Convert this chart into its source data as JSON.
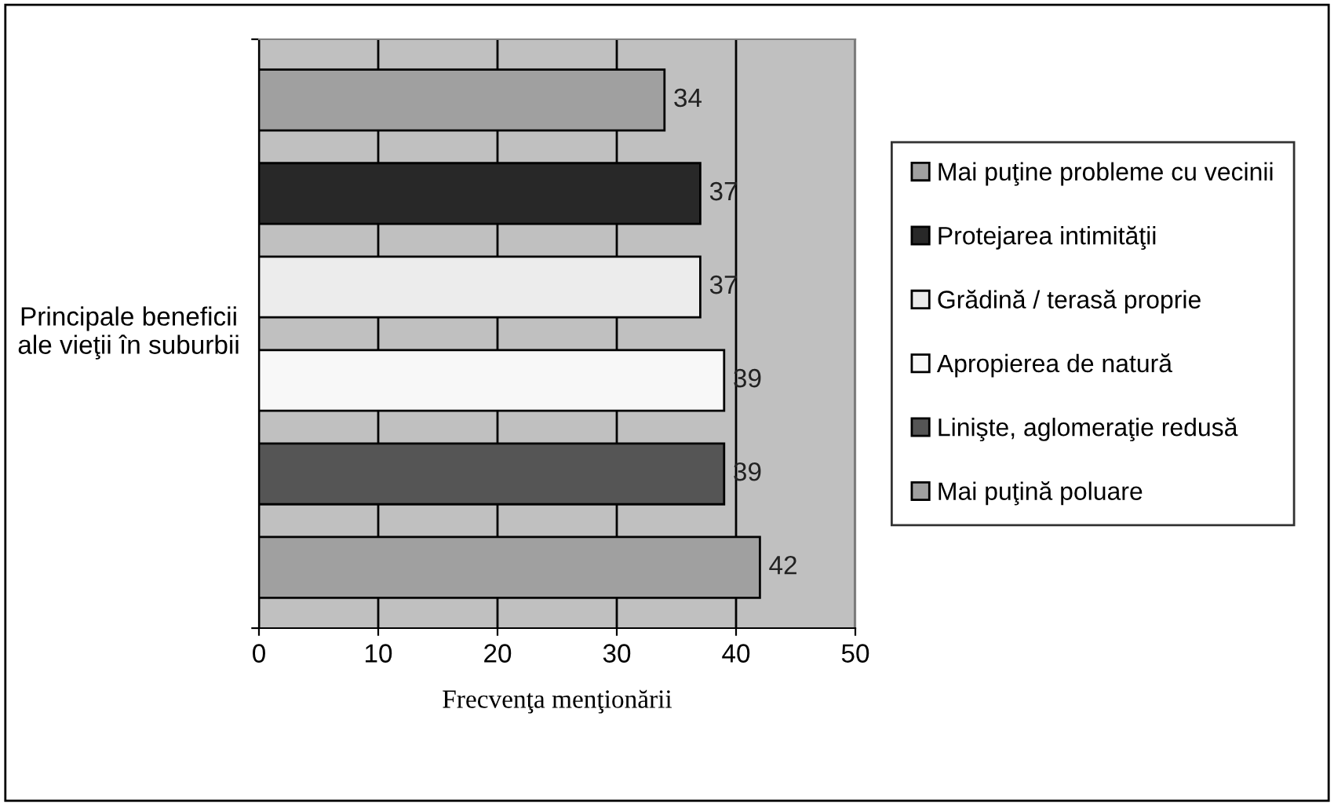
{
  "chart_data": {
    "type": "bar",
    "orientation": "horizontal",
    "categories": [
      null,
      null,
      null,
      null,
      null,
      null
    ],
    "ylabel": "Principale beneficii ale vieţii în suburbii",
    "xlabel": "Frecvenţa menţionării",
    "xlim": [
      0,
      50
    ],
    "xticks": [
      0,
      10,
      20,
      30,
      40,
      50
    ],
    "grid": "x",
    "legend": "right",
    "data_labels": true,
    "series": [
      {
        "name": "Mai puţine probleme cu vecinii",
        "color": "#a0a0a0",
        "values": [
          34,
          null,
          null,
          null,
          null,
          null
        ]
      },
      {
        "name": "Protejarea intimităţii",
        "color": "#282828",
        "values": [
          null,
          37,
          null,
          null,
          null,
          null
        ]
      },
      {
        "name": "Grădină / terasă proprie",
        "color": "#ececec",
        "values": [
          null,
          null,
          37,
          null,
          null,
          null
        ]
      },
      {
        "name": "Apropierea de natură",
        "color": "#f8f8f8",
        "values": [
          null,
          null,
          null,
          39,
          null,
          null
        ]
      },
      {
        "name": "Linişte, aglomeraţie redusă",
        "color": "#555555",
        "values": [
          null,
          null,
          null,
          null,
          39,
          null
        ]
      },
      {
        "name": "Mai puţină poluare",
        "color": "#a0a0a0",
        "values": [
          null,
          null,
          null,
          null,
          null,
          42
        ]
      }
    ]
  }
}
